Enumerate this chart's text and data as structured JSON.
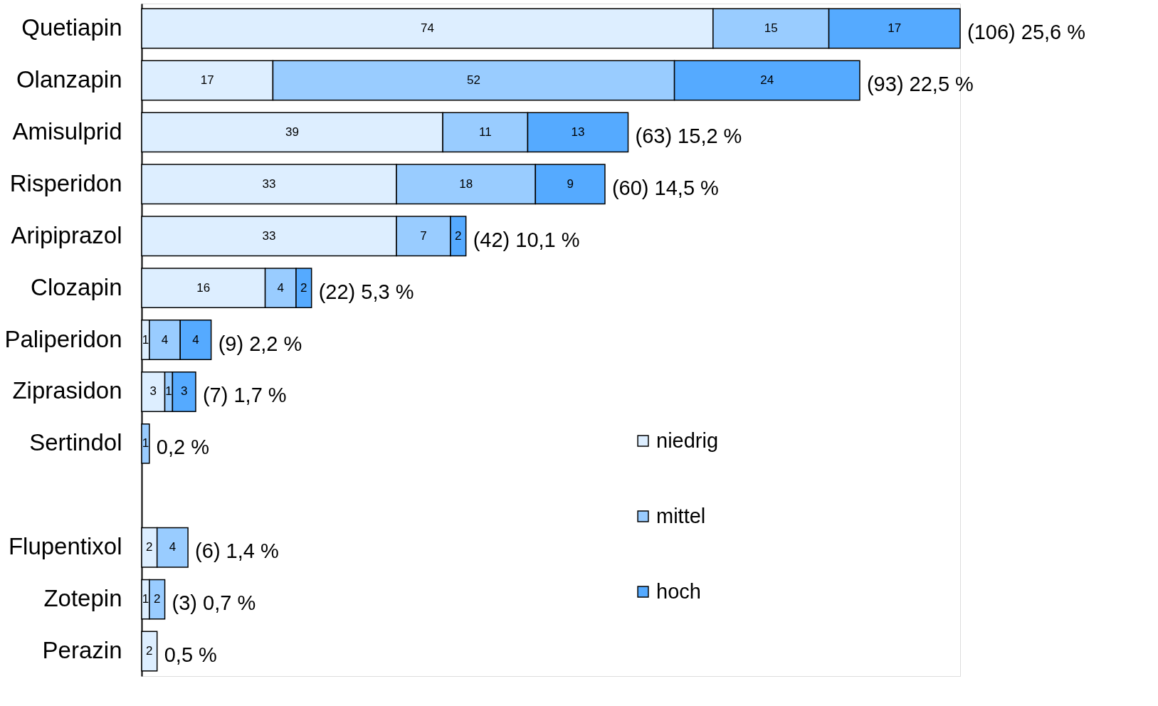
{
  "chart_data": {
    "type": "bar",
    "orientation": "horizontal",
    "stacked": true,
    "data_labels": true,
    "legend": "right",
    "grid": false,
    "categories": [
      "Quetiapin",
      "Olanzapin",
      "Amisulprid",
      "Risperidon",
      "Aripiprazol",
      "Clozapin",
      "Paliperidon",
      "Ziprasidon",
      "Sertindol",
      null,
      "Flupentixol",
      "Zotepin",
      "Perazin"
    ],
    "series": [
      {
        "name": "niedrig",
        "color": "#ddeeff",
        "values": [
          74,
          17,
          39,
          33,
          33,
          16,
          1,
          3,
          null,
          null,
          2,
          1,
          2
        ]
      },
      {
        "name": "mittel",
        "color": "#99ccff",
        "values": [
          15,
          52,
          11,
          18,
          7,
          4,
          4,
          1,
          1,
          null,
          4,
          2,
          null
        ]
      },
      {
        "name": "hoch",
        "color": "#55aaff",
        "values": [
          17,
          24,
          13,
          9,
          2,
          2,
          4,
          3,
          null,
          null,
          null,
          null,
          null
        ]
      }
    ],
    "annotations": [
      {
        "text": "(106) 25,6 %",
        "x": 106,
        "y": "Quetiapin"
      },
      {
        "text": "(93) 22,5 %",
        "x": 93,
        "y": "Olanzapin"
      },
      {
        "text": "(63) 15,2 %",
        "x": 63,
        "y": "Amisulprid"
      },
      {
        "text": "(60) 14,5 %",
        "x": 60,
        "y": "Risperidon"
      },
      {
        "text": "(42) 10,1 %",
        "x": 42,
        "y": "Aripiprazol"
      },
      {
        "text": "(22) 5,3 %",
        "x": 22,
        "y": "Clozapin"
      },
      {
        "text": "(9) 2,2 %",
        "x": 9,
        "y": "Paliperidon"
      },
      {
        "text": "(7) 1,7 %",
        "x": 7,
        "y": "Ziprasidon"
      },
      {
        "text": "0,2 %",
        "x": 1,
        "y": "Sertindol"
      },
      {
        "text": "(6) 1,4 %",
        "x": 6,
        "y": "Flupentixol"
      },
      {
        "text": "(3) 0,7 %",
        "x": 3,
        "y": "Zotepin"
      },
      {
        "text": "0,5 %",
        "x": 2,
        "y": "Perazin"
      }
    ]
  }
}
